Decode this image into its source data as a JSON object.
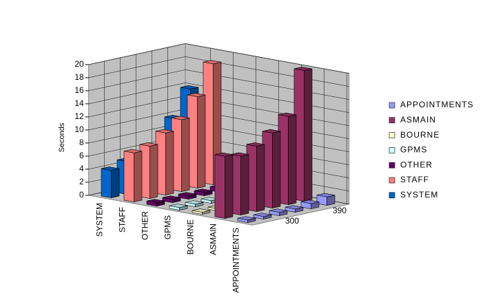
{
  "chart_data": {
    "type": "bar3d",
    "y_label": "Seconds",
    "ylim": [
      0,
      20
    ],
    "yticks": [
      0,
      2,
      4,
      6,
      8,
      10,
      12,
      14,
      16,
      18,
      20
    ],
    "categories": [
      null,
      "300",
      null,
      null,
      "390",
      null
    ],
    "series": [
      {
        "name": "SYSTEM",
        "color": "#0066cc",
        "values": [
          4.2,
          5,
          2,
          2,
          10,
          14
        ]
      },
      {
        "name": "STAFF",
        "color": "#ff8080",
        "values": [
          7.5,
          8,
          9.5,
          11,
          14,
          18.5
        ]
      },
      {
        "name": "OTHER",
        "color": "#660066",
        "values": [
          0.5,
          0.5,
          0.5,
          0.5,
          0.6,
          1.5
        ]
      },
      {
        "name": "GPMS",
        "color": "#ccffff",
        "values": [
          0.4,
          0.4,
          0.4,
          0.4,
          0.5,
          1
        ]
      },
      {
        "name": "BOURNE",
        "color": "#ffffcc",
        "values": [
          0.3,
          0.3,
          0.3,
          0.4,
          0.4,
          0.5
        ]
      },
      {
        "name": "ASMAIN",
        "color": "#993366",
        "values": [
          9.5,
          9,
          10,
          11.5,
          13.5,
          20
        ]
      },
      {
        "name": "APPOINTMENTS",
        "color": "#9999ff",
        "values": [
          0.4,
          0.4,
          0.5,
          0.5,
          0.8,
          1.3
        ]
      }
    ],
    "grid": true
  }
}
